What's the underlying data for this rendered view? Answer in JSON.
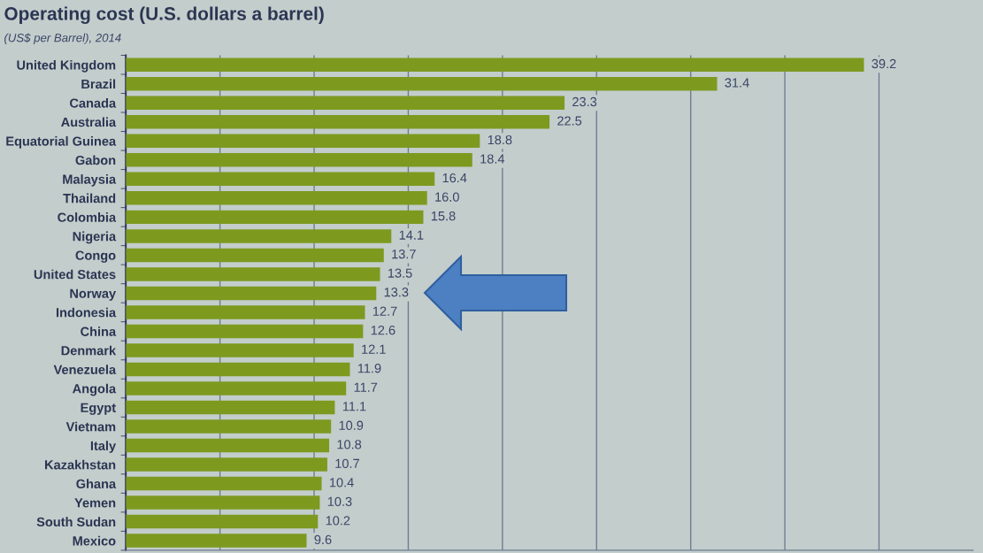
{
  "chart_data": {
    "type": "bar",
    "orientation": "horizontal",
    "title": "Operating cost (U.S. dollars a barrel)",
    "subtitle": "(US$ per Barrel), 2014",
    "categories": [
      "United Kingdom",
      "Brazil",
      "Canada",
      "Australia",
      "Equatorial Guinea",
      "Gabon",
      "Malaysia",
      "Thailand",
      "Colombia",
      "Nigeria",
      "Congo",
      "United States",
      "Norway",
      "Indonesia",
      "China",
      "Denmark",
      "Venezuela",
      "Angola",
      "Egypt",
      "Vietnam",
      "Italy",
      "Kazakhstan",
      "Ghana",
      "Yemen",
      "South Sudan",
      "Mexico"
    ],
    "values": [
      39.2,
      31.4,
      23.3,
      22.5,
      18.8,
      18.4,
      16.4,
      16.0,
      15.8,
      14.1,
      13.7,
      13.5,
      13.3,
      12.7,
      12.6,
      12.1,
      11.9,
      11.7,
      11.1,
      10.9,
      10.8,
      10.7,
      10.4,
      10.3,
      10.2,
      9.6
    ],
    "value_labels": [
      "39.2",
      "31.4",
      "23.3",
      "22.5",
      "18.8",
      "18.4",
      "16.4",
      "16.0",
      "15.8",
      "14.1",
      "13.7",
      "13.5",
      "13.3",
      "12.7",
      "12.6",
      "12.1",
      "11.9",
      "11.7",
      "11.1",
      "10.9",
      "10.8",
      "10.7",
      "10.4",
      "10.3",
      "10.2",
      "9.6"
    ],
    "color": "#7d9a1f",
    "xlim": [
      0,
      45
    ],
    "xticks": [
      {
        "value": 5,
        "label": null
      },
      {
        "value": 10,
        "label": null
      },
      {
        "value": 15,
        "label": null
      },
      {
        "value": 20,
        "label": null
      },
      {
        "value": 25,
        "label": null
      },
      {
        "value": 30,
        "label": null
      },
      {
        "value": 35,
        "label": null
      },
      {
        "value": 40,
        "label": null
      }
    ],
    "grid": "x",
    "tick_labels": "y"
  }
}
